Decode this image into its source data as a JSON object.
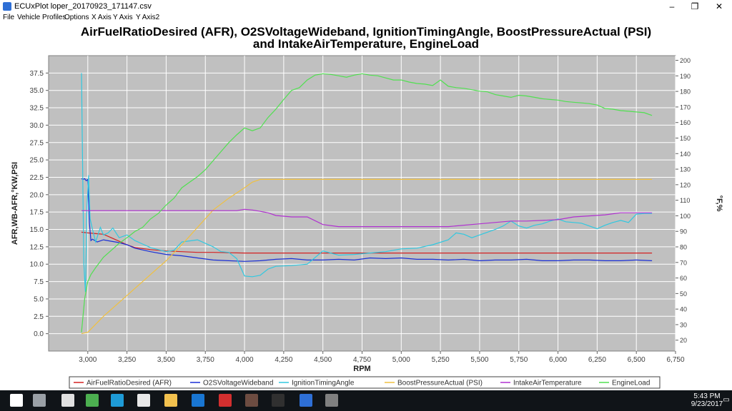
{
  "window": {
    "title": "ECUxPlot loper_20170923_171147.csv",
    "minimize_glyph": "–",
    "maximize_glyph": "❐",
    "close_glyph": "✕"
  },
  "menu": [
    "File",
    "Vehicle Profiles",
    "Options",
    "X Axis",
    "Y Axis",
    "Y Axis2"
  ],
  "chart_data": {
    "type": "line",
    "title_line1": "AirFuelRatioDesired (AFR), O2SVoltageWideband, IgnitionTimingAngle, BoostPressureActual (PSI)",
    "title_line2": "and IntakeAirTemperature, EngineLoad",
    "xlabel": "RPM",
    "ylabel": "AFR,WB-AFR,°KW,PSI",
    "y2label": "°F,%",
    "xlim": [
      2750,
      6750
    ],
    "ylim": [
      -2.5,
      40
    ],
    "y2lim": [
      13,
      203
    ],
    "x_ticks": [
      "3,000",
      "3,250",
      "3,500",
      "3,750",
      "4,000",
      "4,250",
      "4,500",
      "4,750",
      "5,000",
      "5,250",
      "5,500",
      "5,750",
      "6,000",
      "6,250",
      "6,500",
      "6,750"
    ],
    "x_tick_values": [
      3000,
      3250,
      3500,
      3750,
      4000,
      4250,
      4500,
      4750,
      5000,
      5250,
      5500,
      5750,
      6000,
      6250,
      6500,
      6750
    ],
    "y_ticks": [
      "0.0",
      "2.5",
      "5.0",
      "7.5",
      "10.0",
      "12.5",
      "15.0",
      "17.5",
      "20.0",
      "22.5",
      "25.0",
      "27.5",
      "30.0",
      "32.5",
      "35.0",
      "37.5"
    ],
    "y_tick_values": [
      0,
      2.5,
      5,
      7.5,
      10,
      12.5,
      15,
      17.5,
      20,
      22.5,
      25,
      27.5,
      30,
      32.5,
      35,
      37.5
    ],
    "y2_ticks": [
      "20",
      "30",
      "40",
      "50",
      "60",
      "70",
      "80",
      "90",
      "100",
      "110",
      "120",
      "130",
      "140",
      "150",
      "160",
      "170",
      "180",
      "190",
      "200"
    ],
    "y2_tick_values": [
      20,
      30,
      40,
      50,
      60,
      70,
      80,
      90,
      100,
      110,
      120,
      130,
      140,
      150,
      160,
      170,
      180,
      190,
      200
    ],
    "grid": true,
    "legend_position": "bottom",
    "series": [
      {
        "name": "AirFuelRatioDesired (AFR)",
        "color": "#d42020",
        "axis": "left",
        "x": [
          2960,
          3000,
          3050,
          3100,
          3150,
          3200,
          3250,
          3300,
          3400,
          3500,
          3600,
          3700,
          3800,
          3900,
          4000,
          4200,
          4500,
          5000,
          5500,
          6000,
          6500,
          6600
        ],
        "y": [
          14.6,
          14.5,
          14.4,
          14.3,
          13.8,
          13.3,
          12.8,
          12.4,
          12.1,
          11.9,
          11.8,
          11.7,
          11.7,
          11.65,
          11.6,
          11.6,
          11.6,
          11.6,
          11.6,
          11.6,
          11.6,
          11.6
        ]
      },
      {
        "name": "O2SVoltageWideband",
        "color": "#1a2fd6",
        "axis": "left",
        "x": [
          2960,
          2970,
          2980,
          2990,
          3000,
          3010,
          3020,
          3030,
          3060,
          3100,
          3150,
          3200,
          3250,
          3300,
          3400,
          3500,
          3600,
          3700,
          3800,
          3900,
          4000,
          4100,
          4200,
          4300,
          4400,
          4500,
          4600,
          4700,
          4800,
          4900,
          5000,
          5100,
          5200,
          5300,
          5400,
          5500,
          5600,
          5700,
          5800,
          5900,
          6000,
          6100,
          6200,
          6300,
          6400,
          6500,
          6600
        ],
        "y": [
          22.3,
          22.2,
          22.3,
          22.0,
          22.2,
          16.0,
          13.4,
          13.6,
          13.2,
          13.5,
          13.3,
          13.1,
          12.8,
          12.3,
          11.8,
          11.4,
          11.2,
          10.9,
          10.6,
          10.5,
          10.4,
          10.5,
          10.7,
          10.8,
          10.6,
          10.6,
          10.7,
          10.6,
          10.9,
          10.8,
          10.9,
          10.7,
          10.7,
          10.6,
          10.7,
          10.5,
          10.6,
          10.6,
          10.7,
          10.5,
          10.5,
          10.6,
          10.6,
          10.5,
          10.5,
          10.6,
          10.5
        ]
      },
      {
        "name": "IgnitionTimingAngle",
        "color": "#30c8e0",
        "axis": "left",
        "x": [
          2960,
          2965,
          2975,
          2985,
          2995,
          3005,
          3015,
          3030,
          3050,
          3080,
          3100,
          3130,
          3160,
          3200,
          3250,
          3300,
          3350,
          3400,
          3450,
          3500,
          3550,
          3600,
          3700,
          3800,
          3850,
          3900,
          3950,
          4000,
          4050,
          4100,
          4150,
          4200,
          4300,
          4400,
          4500,
          4600,
          4700,
          4800,
          4900,
          5000,
          5100,
          5200,
          5300,
          5350,
          5400,
          5450,
          5500,
          5550,
          5600,
          5650,
          5700,
          5750,
          5800,
          5850,
          5900,
          5950,
          6000,
          6050,
          6100,
          6150,
          6200,
          6250,
          6300,
          6350,
          6400,
          6450,
          6500,
          6550,
          6600
        ],
        "y": [
          37.5,
          28.0,
          10.0,
          6.0,
          18.3,
          22.8,
          16.5,
          15.0,
          13.2,
          15.3,
          14.2,
          14.5,
          15.2,
          13.8,
          14.2,
          13.4,
          12.9,
          12.4,
          12.1,
          11.8,
          12.0,
          13.2,
          13.5,
          12.5,
          11.8,
          11.7,
          10.8,
          8.3,
          8.2,
          8.4,
          9.3,
          9.7,
          9.8,
          10.0,
          11.9,
          11.3,
          11.4,
          11.6,
          11.8,
          12.2,
          12.3,
          12.8,
          13.5,
          14.5,
          14.3,
          13.8,
          14.2,
          14.6,
          15.0,
          15.5,
          16.2,
          15.5,
          15.2,
          15.6,
          15.8,
          16.2,
          16.5,
          16.1,
          16.0,
          15.9,
          15.5,
          15.1,
          15.6,
          16.0,
          16.3,
          16.0,
          17.2,
          17.3,
          17.3
        ]
      },
      {
        "name": "BoostPressureActual (PSI)",
        "color": "#f0c040",
        "axis": "left",
        "x": [
          2960,
          3000,
          3100,
          3200,
          3300,
          3400,
          3500,
          3600,
          3700,
          3800,
          3900,
          4000,
          4050,
          4100,
          4200,
          4500,
          5000,
          5500,
          6000,
          6500,
          6600
        ],
        "y": [
          0.0,
          0.2,
          2.5,
          4.5,
          6.5,
          8.5,
          10.5,
          12.8,
          15.3,
          17.8,
          19.5,
          21.0,
          21.8,
          22.2,
          22.2,
          22.2,
          22.2,
          22.2,
          22.2,
          22.2,
          22.2
        ]
      },
      {
        "name": "IntakeAirTemperature",
        "color": "#b030d0",
        "axis": "left",
        "x": [
          2960,
          3000,
          3200,
          3400,
          3600,
          3800,
          3950,
          4000,
          4050,
          4100,
          4150,
          4200,
          4300,
          4400,
          4500,
          4600,
          4800,
          5000,
          5200,
          5300,
          5500,
          5700,
          5800,
          6000,
          6100,
          6300,
          6400,
          6600
        ],
        "y": [
          17.7,
          17.7,
          17.7,
          17.7,
          17.7,
          17.7,
          17.7,
          17.9,
          17.8,
          17.6,
          17.4,
          17.0,
          16.8,
          16.8,
          15.7,
          15.4,
          15.4,
          15.4,
          15.4,
          15.4,
          15.8,
          16.2,
          16.2,
          16.4,
          16.8,
          17.1,
          17.4,
          17.4
        ]
      },
      {
        "name": "EngineLoad",
        "color": "#50e050",
        "axis": "left",
        "x": [
          2960,
          2980,
          3000,
          3020,
          3050,
          3100,
          3150,
          3200,
          3250,
          3300,
          3350,
          3400,
          3450,
          3500,
          3550,
          3600,
          3650,
          3700,
          3750,
          3800,
          3850,
          3900,
          3950,
          4000,
          4050,
          4100,
          4150,
          4200,
          4250,
          4300,
          4350,
          4400,
          4450,
          4500,
          4550,
          4600,
          4650,
          4700,
          4750,
          4800,
          4850,
          4900,
          4950,
          5000,
          5050,
          5100,
          5150,
          5200,
          5250,
          5300,
          5350,
          5400,
          5450,
          5500,
          5550,
          5600,
          5650,
          5700,
          5750,
          5800,
          5850,
          5900,
          5950,
          6000,
          6050,
          6100,
          6150,
          6200,
          6250,
          6300,
          6350,
          6400,
          6450,
          6500,
          6550,
          6600
        ],
        "y": [
          0.2,
          5.0,
          7.5,
          8.5,
          9.5,
          11.0,
          12.0,
          13.0,
          13.8,
          14.7,
          15.3,
          16.5,
          17.3,
          18.5,
          19.5,
          21.0,
          21.8,
          22.6,
          23.6,
          24.9,
          26.2,
          27.5,
          28.6,
          29.6,
          29.2,
          29.6,
          31.1,
          32.3,
          33.7,
          35.0,
          35.4,
          36.5,
          37.2,
          37.4,
          37.3,
          37.1,
          36.9,
          37.2,
          37.4,
          37.2,
          37.1,
          36.8,
          36.5,
          36.5,
          36.2,
          36.0,
          35.9,
          35.7,
          36.5,
          35.6,
          35.4,
          35.3,
          35.1,
          34.9,
          34.8,
          34.4,
          34.2,
          34.0,
          34.3,
          34.2,
          34.0,
          33.8,
          33.7,
          33.6,
          33.4,
          33.3,
          33.2,
          33.1,
          32.9,
          32.4,
          32.3,
          32.1,
          32.0,
          31.9,
          31.8,
          31.4
        ]
      }
    ]
  },
  "taskbar": {
    "icons": [
      {
        "name": "windows-start-icon",
        "color": "#ffffff"
      },
      {
        "name": "task-view-icon",
        "color": "#9aa0a6"
      },
      {
        "name": "app-window-icon",
        "color": "#e0e0e0"
      },
      {
        "name": "chrome-icon",
        "color": "#4caf50"
      },
      {
        "name": "skype-icon",
        "color": "#1e9bd7"
      },
      {
        "name": "store-icon",
        "color": "#e8e8e8"
      },
      {
        "name": "file-explorer-icon",
        "color": "#f2c14e"
      },
      {
        "name": "edge-icon",
        "color": "#1976d2"
      },
      {
        "name": "netflix-icon",
        "color": "#d32f2f"
      },
      {
        "name": "media-app-icon",
        "color": "#6d4c41"
      },
      {
        "name": "app-icon",
        "color": "#303030"
      },
      {
        "name": "ecuxplot-icon",
        "color": "#2e6fd6"
      },
      {
        "name": "misc-app-icon",
        "color": "#808080"
      }
    ],
    "time": "5:43 PM",
    "date": "9/23/2017",
    "notification_glyph": "▭"
  }
}
